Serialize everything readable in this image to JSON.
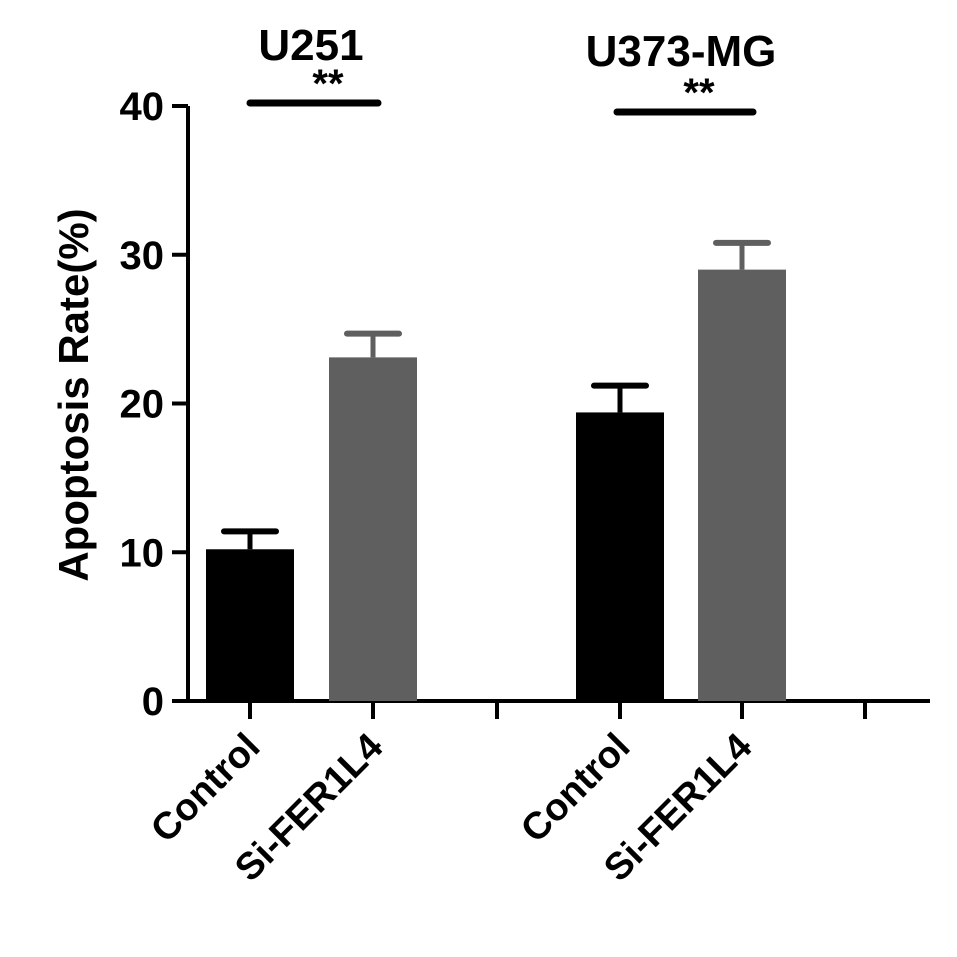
{
  "chart_data": {
    "type": "bar",
    "ylabel": "Apoptosis Rate(%)",
    "ylim": [
      0,
      40
    ],
    "yticks": [
      "0",
      "10",
      "20",
      "30",
      "40"
    ],
    "grid": false,
    "groups": [
      {
        "title": "U251",
        "significance": "**",
        "bars": [
          {
            "category": "Control",
            "value": 10.2,
            "error": 1.2,
            "color": "#000000"
          },
          {
            "category": "Si-FER1L4",
            "value": 23.1,
            "error": 1.6,
            "color": "#5f5f5f"
          }
        ]
      },
      {
        "title": "U373-MG",
        "significance": "**",
        "bars": [
          {
            "category": "Control",
            "value": 19.4,
            "error": 1.8,
            "color": "#000000"
          },
          {
            "category": "Si-FER1L4",
            "value": 29.0,
            "error": 1.8,
            "color": "#5f5f5f"
          }
        ]
      }
    ]
  }
}
